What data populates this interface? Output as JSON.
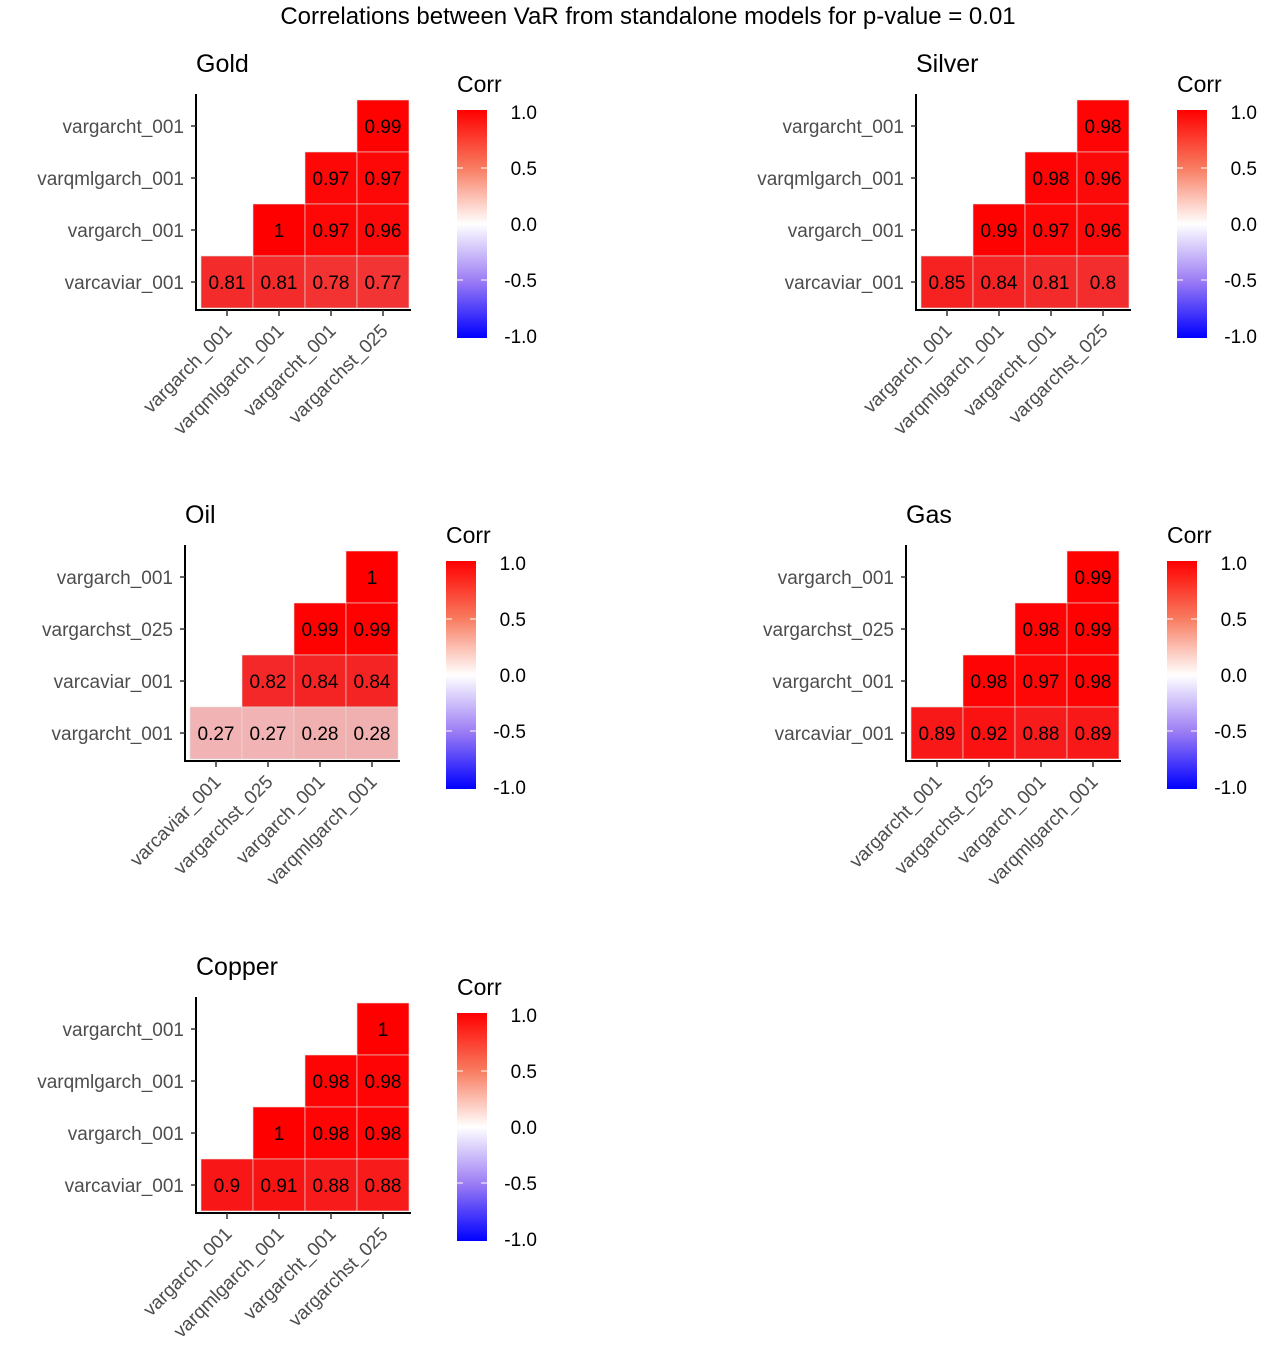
{
  "chart_data": {
    "type": "heatmap",
    "title": "Correlations between VaR from standalone models for p-value = 0.01",
    "color_scale": {
      "low": "#0000FF",
      "mid": "#FFFFFF",
      "high": "#FF0000",
      "limits": [
        -1,
        1
      ]
    },
    "legend": {
      "title": "Corr",
      "ticks": [
        "1.0",
        "0.5",
        "0.0",
        "-0.5",
        "-1.0"
      ],
      "placement": "right"
    },
    "panels": [
      {
        "title": "Gold",
        "y_labels": [
          "vargarcht_001",
          "varqmlgarch_001",
          "vargarch_001",
          "varcaviar_001"
        ],
        "x_labels": [
          "vargarch_001",
          "varqmlgarch_001",
          "vargarcht_001",
          "vargarchst_025"
        ],
        "rows": [
          [
            null,
            null,
            null,
            "0.99"
          ],
          [
            null,
            null,
            "0.97",
            "0.97"
          ],
          [
            null,
            "1",
            "0.97",
            "0.96"
          ],
          [
            "0.81",
            "0.81",
            "0.78",
            "0.77"
          ]
        ]
      },
      {
        "title": "Silver",
        "y_labels": [
          "vargarcht_001",
          "varqmlgarch_001",
          "vargarch_001",
          "varcaviar_001"
        ],
        "x_labels": [
          "vargarch_001",
          "varqmlgarch_001",
          "vargarcht_001",
          "vargarchst_025"
        ],
        "rows": [
          [
            null,
            null,
            null,
            "0.98"
          ],
          [
            null,
            null,
            "0.98",
            "0.96"
          ],
          [
            null,
            "0.99",
            "0.97",
            "0.96"
          ],
          [
            "0.85",
            "0.84",
            "0.81",
            "0.8"
          ]
        ]
      },
      {
        "title": "Oil",
        "y_labels": [
          "vargarch_001",
          "vargarchst_025",
          "varcaviar_001",
          "vargarcht_001"
        ],
        "x_labels": [
          "varcaviar_001",
          "vargarchst_025",
          "vargarch_001",
          "varqmlgarch_001"
        ],
        "rows": [
          [
            null,
            null,
            null,
            "1"
          ],
          [
            null,
            null,
            "0.99",
            "0.99"
          ],
          [
            null,
            "0.82",
            "0.84",
            "0.84"
          ],
          [
            "0.27",
            "0.27",
            "0.28",
            "0.28"
          ]
        ]
      },
      {
        "title": "Gas",
        "y_labels": [
          "vargarch_001",
          "vargarchst_025",
          "vargarcht_001",
          "varcaviar_001"
        ],
        "x_labels": [
          "vargarcht_001",
          "vargarchst_025",
          "vargarch_001",
          "varqmlgarch_001"
        ],
        "rows": [
          [
            null,
            null,
            null,
            "0.99"
          ],
          [
            null,
            null,
            "0.98",
            "0.99"
          ],
          [
            null,
            "0.98",
            "0.97",
            "0.98"
          ],
          [
            "0.89",
            "0.92",
            "0.88",
            "0.89"
          ]
        ]
      },
      {
        "title": "Copper",
        "y_labels": [
          "vargarcht_001",
          "varqmlgarch_001",
          "vargarch_001",
          "varcaviar_001"
        ],
        "x_labels": [
          "vargarch_001",
          "varqmlgarch_001",
          "vargarcht_001",
          "vargarchst_025"
        ],
        "rows": [
          [
            null,
            null,
            null,
            "1"
          ],
          [
            null,
            null,
            "0.98",
            "0.98"
          ],
          [
            null,
            "1",
            "0.98",
            "0.98"
          ],
          [
            "0.9",
            "0.91",
            "0.88",
            "0.88"
          ]
        ]
      }
    ]
  }
}
